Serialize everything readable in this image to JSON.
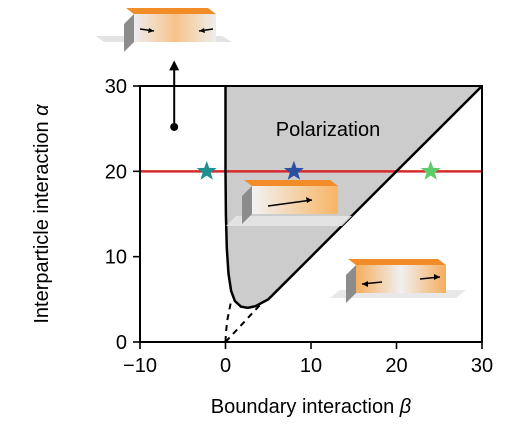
{
  "chart_data": {
    "type": "line",
    "title": "",
    "xlabel": "Boundary interaction",
    "xlabel_symbol": "β",
    "ylabel": "Interparticle interaction",
    "ylabel_symbol": "α",
    "xlim": [
      -10,
      30
    ],
    "ylim": [
      0,
      30
    ],
    "xticks": [
      -10,
      0,
      10,
      20,
      30
    ],
    "xtick_labels": [
      "−10",
      "0",
      "10",
      "20",
      "30"
    ],
    "yticks": [
      0,
      10,
      20,
      30
    ],
    "ytick_labels": [
      "0",
      "10",
      "20",
      "30"
    ],
    "grid": false,
    "region_label": "Polarization",
    "region_fill": "#cccccc",
    "boundary_color": "#000000",
    "boundary_solid": [
      {
        "x": 0,
        "y": 30
      },
      {
        "x": 0,
        "y": 20
      },
      {
        "x": 0.05,
        "y": 15
      },
      {
        "x": 0.15,
        "y": 11
      },
      {
        "x": 0.35,
        "y": 8
      },
      {
        "x": 0.65,
        "y": 6
      },
      {
        "x": 1.1,
        "y": 4.8
      },
      {
        "x": 1.8,
        "y": 4.15
      },
      {
        "x": 2.6,
        "y": 4.0
      },
      {
        "x": 3.5,
        "y": 4.2
      },
      {
        "x": 5,
        "y": 5.0
      },
      {
        "x": 10,
        "y": 10
      },
      {
        "x": 20,
        "y": 20
      },
      {
        "x": 30,
        "y": 30
      }
    ],
    "boundary_dashed": [
      [
        {
          "x": 0,
          "y": 0
        },
        {
          "x": 0.05,
          "y": 1
        },
        {
          "x": 0.2,
          "y": 2.5
        },
        {
          "x": 0.6,
          "y": 4.5
        }
      ],
      [
        {
          "x": 0,
          "y": 0
        },
        {
          "x": 4,
          "y": 4.3
        }
      ]
    ],
    "horizontal_line": {
      "y": 20,
      "x_from": -10,
      "x_to": 30,
      "color": "#d62b2b"
    },
    "markers": [
      {
        "x": -2.2,
        "y": 20,
        "color": "#1f8f8f",
        "shape": "star"
      },
      {
        "x": 8,
        "y": 20,
        "color": "#2b4ea0",
        "shape": "star"
      },
      {
        "x": 24,
        "y": 20,
        "color": "#5ccc6a",
        "shape": "star"
      }
    ],
    "arrow": {
      "x": -6,
      "y_from": 25.2,
      "y_to": 33
    },
    "accent_colors": {
      "orange": "#f28c28",
      "grey": "#d6d6d6"
    }
  }
}
